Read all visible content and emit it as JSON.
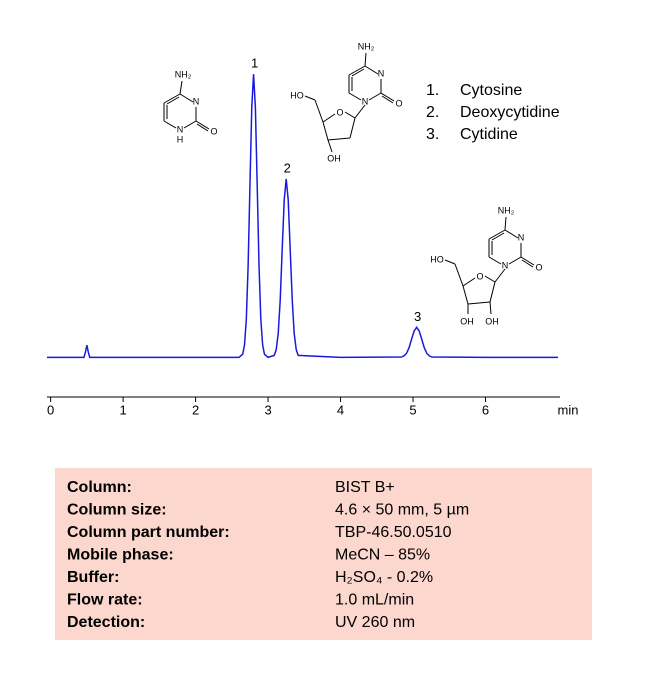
{
  "chart_data": {
    "type": "line",
    "x_label": "min",
    "xlim": [
      -0.05,
      7.0
    ],
    "xticks": [
      0,
      1,
      2,
      3,
      4,
      5,
      6
    ],
    "ylim": [
      -8,
      105
    ],
    "series": [
      {
        "color": "#1a1adc",
        "x": [
          -0.05,
          0.3,
          0.46,
          0.48,
          0.5,
          0.52,
          0.54,
          1,
          2,
          2.6,
          2.65,
          2.675,
          2.7,
          2.725,
          2.75,
          2.775,
          2.8,
          2.825,
          2.85,
          2.875,
          2.9,
          2.925,
          2.95,
          3.0,
          3.085,
          3.113,
          3.14,
          3.168,
          3.195,
          3.223,
          3.25,
          3.278,
          3.305,
          3.333,
          3.36,
          3.388,
          3.415,
          4,
          4.84,
          4.875,
          4.91,
          4.945,
          4.98,
          5.015,
          5.05,
          5.085,
          5.12,
          5.155,
          5.19,
          5.225,
          5.26,
          6,
          7.0
        ],
        "values": [
          0,
          0,
          0,
          1.8,
          4.3,
          1.8,
          0,
          0,
          0,
          0,
          1.1,
          4.4,
          13.5,
          32.5,
          60.7,
          88.2,
          100,
          88.2,
          60.7,
          32.5,
          13.5,
          4.4,
          1.1,
          0,
          0.7,
          2.8,
          8.5,
          20.5,
          38.2,
          55.6,
          63,
          55.6,
          38.2,
          20.5,
          8.5,
          2.8,
          0.7,
          0,
          0.1,
          0.5,
          1.4,
          3.4,
          6.4,
          9.3,
          10.6,
          9.3,
          6.4,
          3.4,
          1.4,
          0.5,
          0.1,
          0,
          0
        ]
      }
    ],
    "peaks": [
      {
        "label": "1",
        "x": 2.8,
        "y": 100
      },
      {
        "label": "2",
        "x": 3.25,
        "y": 63
      },
      {
        "label": "3",
        "x": 5.05,
        "y": 10.6
      }
    ],
    "legend": [
      {
        "number": "1.",
        "name": "Cytosine"
      },
      {
        "number": "2.",
        "name": "Deoxycytidine"
      },
      {
        "number": "3.",
        "name": "Cytidine"
      }
    ]
  },
  "structures": [
    {
      "labels": [
        "NH₂",
        "N",
        "N",
        "H",
        "O"
      ]
    },
    {
      "labels": [
        "NH₂",
        "N",
        "N",
        "O",
        "O",
        "HO",
        "OH"
      ]
    },
    {
      "labels": [
        "NH₂",
        "N",
        "N",
        "O",
        "O",
        "HO",
        "OH",
        "OH"
      ]
    }
  ],
  "table": {
    "rows": [
      [
        "Column:",
        "BIST B+"
      ],
      [
        "Column size:",
        "4.6 × 50 mm, 5 µm"
      ],
      [
        "Column part number:",
        "TBP-46.50.0510"
      ],
      [
        "Mobile phase:",
        "MeCN – 85%"
      ],
      [
        "Buffer:",
        "H₂SO₄  - 0.2%"
      ],
      [
        "Flow rate:",
        "1.0 mL/min"
      ],
      [
        "Detection:",
        "UV 260 nm"
      ]
    ]
  }
}
